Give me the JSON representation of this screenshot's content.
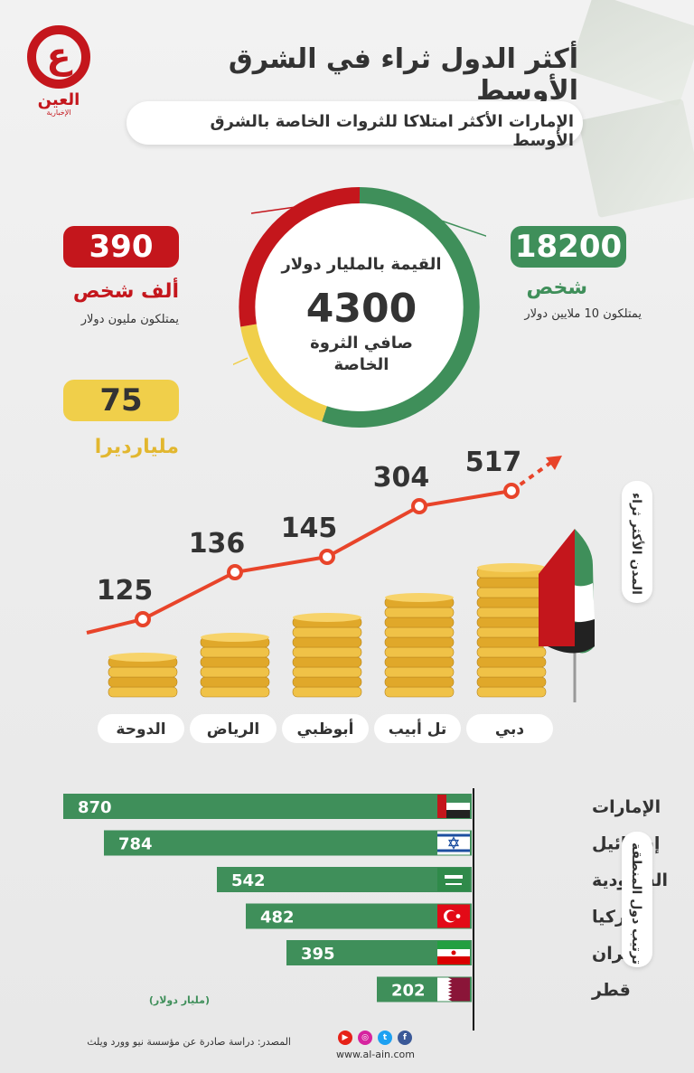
{
  "brand": {
    "logo_letter": "ع",
    "name": "العين",
    "tagline": "الإخبارية",
    "website": "www.al-ain.com"
  },
  "header": {
    "title": "أكثر الدول ثراء في الشرق الأوسط",
    "subtitle": "الإمارات الأكثر امتلاكا للثروات الخاصة بالشرق الأوسط"
  },
  "donut": {
    "title": "القيمة بالمليار دولار",
    "value": "4300",
    "label": "صافي الثروة الخاصة",
    "colors": {
      "green": "#3f8f5a",
      "red": "#c4161c",
      "yellow": "#f0cf4a"
    }
  },
  "stats": {
    "millionaires": {
      "value": "390",
      "label": "ألف شخص",
      "note": "يمتلكون مليون دولار",
      "color": "#c4161c"
    },
    "multi_millionaires": {
      "value": "18200",
      "label": "شخص",
      "note": "يمتلكون 10 ملايين دولار",
      "color": "#3f8f5a"
    },
    "billionaires": {
      "value": "75",
      "label": "مليارديرا",
      "color": "#f0cf4a"
    }
  },
  "cities_section_label": "المدن الأكثر ثراء",
  "chart_data": [
    {
      "type": "line",
      "categories": [
        "الدوحة",
        "الرياض",
        "أبوظبي",
        "تل أبيب",
        "دبي"
      ],
      "values": [
        125,
        136,
        145,
        304,
        517
      ],
      "color": "#e8442a"
    },
    {
      "type": "bar",
      "orientation": "horizontal",
      "categories": [
        "الإمارات",
        "إسرائيل",
        "السعودية",
        "تركيا",
        "إيران",
        "قطر"
      ],
      "values": [
        870,
        784,
        542,
        482,
        395,
        202
      ],
      "unit_note": "(مليار دولار)",
      "section_label": "ترتيب دول المنطقة",
      "color": "#3f8f5a"
    }
  ],
  "footer": {
    "source": "المصدر: دراسة صادرة عن مؤسسة نيو وورد ويلث"
  },
  "social_icons": [
    "youtube-icon",
    "instagram-icon",
    "twitter-icon",
    "facebook-icon"
  ]
}
